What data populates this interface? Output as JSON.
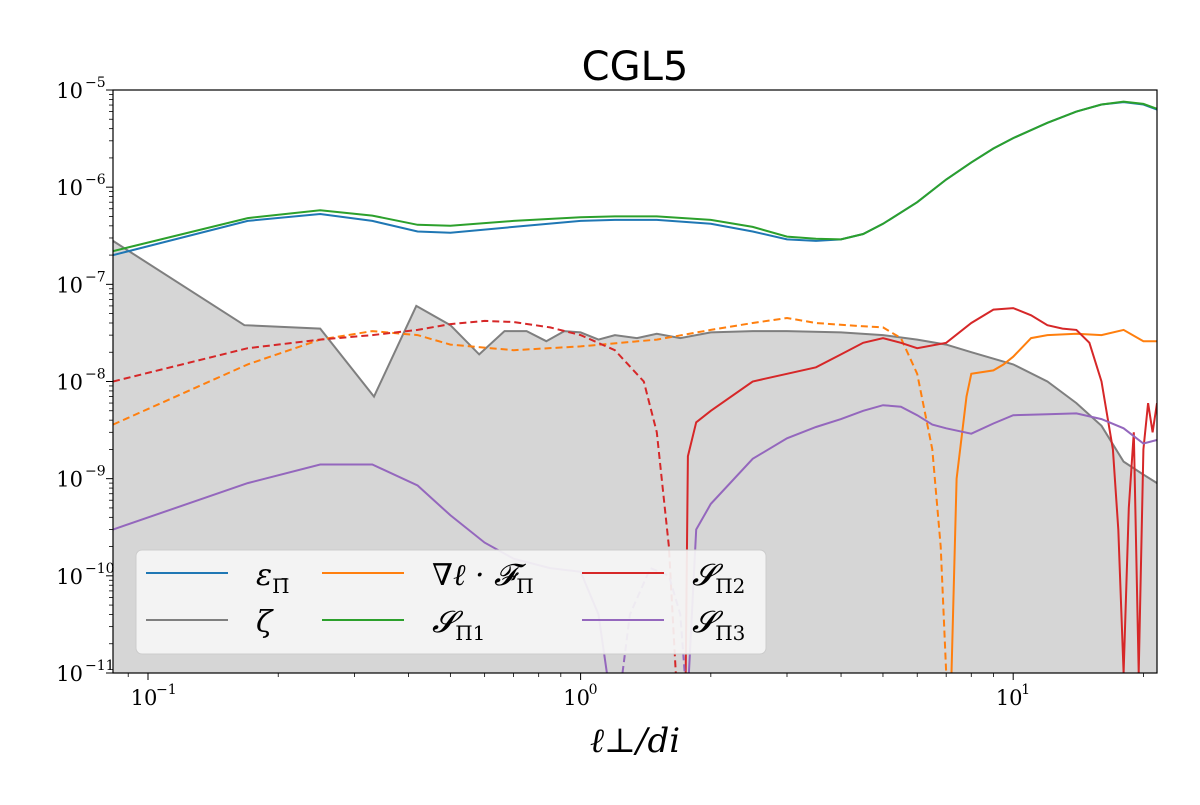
{
  "chart_data": {
    "type": "line",
    "title": "CGL5",
    "xlabel": "ℓ⊥/di",
    "ylabel": "",
    "xscale": "log",
    "yscale": "log",
    "xlim": [
      0.083,
      21.5
    ],
    "ylim": [
      1e-11,
      1e-05
    ],
    "x_ticks": [
      {
        "value": 0.1,
        "base": "10",
        "exp": "−1"
      },
      {
        "value": 1,
        "base": "10",
        "exp": "0"
      },
      {
        "value": 10,
        "base": "10",
        "exp": "1"
      }
    ],
    "y_ticks": [
      {
        "value": 1e-11,
        "base": "10",
        "exp": "−11"
      },
      {
        "value": 1e-10,
        "base": "10",
        "exp": "−10"
      },
      {
        "value": 1e-09,
        "base": "10",
        "exp": "−9"
      },
      {
        "value": 1e-08,
        "base": "10",
        "exp": "−8"
      },
      {
        "value": 1e-07,
        "base": "10",
        "exp": "−7"
      },
      {
        "value": 1e-06,
        "base": "10",
        "exp": "−6"
      },
      {
        "value": 1e-05,
        "base": "10",
        "exp": "−5"
      }
    ],
    "grid": false,
    "legend_position": "lower-left",
    "series": [
      {
        "name": "ε Π̄",
        "color": "#1f77b4",
        "style": "solid",
        "kind": "line",
        "points": [
          [
            0.083,
            2e-07
          ],
          [
            0.17,
            4.5e-07
          ],
          [
            0.25,
            5.3e-07
          ],
          [
            0.33,
            4.5e-07
          ],
          [
            0.42,
            3.5e-07
          ],
          [
            0.5,
            3.4e-07
          ],
          [
            0.7,
            3.9e-07
          ],
          [
            1.0,
            4.5e-07
          ],
          [
            1.2,
            4.6e-07
          ],
          [
            1.5,
            4.6e-07
          ],
          [
            2.0,
            4.2e-07
          ],
          [
            2.5,
            3.5e-07
          ],
          [
            3.0,
            2.9e-07
          ],
          [
            3.5,
            2.8e-07
          ],
          [
            4.0,
            2.9e-07
          ],
          [
            4.5,
            3.3e-07
          ],
          [
            5.0,
            4.2e-07
          ],
          [
            6.0,
            7e-07
          ],
          [
            7.0,
            1.2e-06
          ],
          [
            8.0,
            1.8e-06
          ],
          [
            9.0,
            2.5e-06
          ],
          [
            10.0,
            3.2e-06
          ],
          [
            12.0,
            4.6e-06
          ],
          [
            14.0,
            6e-06
          ],
          [
            16.0,
            7.1e-06
          ],
          [
            18.0,
            7.5e-06
          ],
          [
            20.0,
            7.1e-06
          ],
          [
            21.5,
            6.3e-06
          ]
        ]
      },
      {
        "name": "S Π1",
        "color": "#2ca02c",
        "style": "solid",
        "kind": "line",
        "points": [
          [
            0.083,
            2.2e-07
          ],
          [
            0.17,
            4.8e-07
          ],
          [
            0.25,
            5.8e-07
          ],
          [
            0.33,
            5.1e-07
          ],
          [
            0.42,
            4.1e-07
          ],
          [
            0.5,
            4e-07
          ],
          [
            0.7,
            4.5e-07
          ],
          [
            1.0,
            4.9e-07
          ],
          [
            1.2,
            5e-07
          ],
          [
            1.5,
            5e-07
          ],
          [
            2.0,
            4.6e-07
          ],
          [
            2.5,
            3.9e-07
          ],
          [
            3.0,
            3.1e-07
          ],
          [
            3.5,
            2.95e-07
          ],
          [
            4.0,
            2.9e-07
          ],
          [
            4.5,
            3.3e-07
          ],
          [
            5.0,
            4.2e-07
          ],
          [
            6.0,
            7e-07
          ],
          [
            7.0,
            1.2e-06
          ],
          [
            8.0,
            1.8e-06
          ],
          [
            9.0,
            2.5e-06
          ],
          [
            10.0,
            3.2e-06
          ],
          [
            12.0,
            4.6e-06
          ],
          [
            14.0,
            6e-06
          ],
          [
            16.0,
            7.1e-06
          ],
          [
            18.0,
            7.6e-06
          ],
          [
            20.0,
            7.2e-06
          ],
          [
            21.5,
            6.4e-06
          ]
        ]
      },
      {
        "name": "ζ",
        "color": "#7f7f7f",
        "style": "solid",
        "kind": "filled",
        "points": [
          [
            0.083,
            2.8e-07
          ],
          [
            0.167,
            3.8e-08
          ],
          [
            0.25,
            3.5e-08
          ],
          [
            0.333,
            7e-09
          ],
          [
            0.417,
            6e-08
          ],
          [
            0.5,
            3.8e-08
          ],
          [
            0.583,
            1.9e-08
          ],
          [
            0.667,
            3.3e-08
          ],
          [
            0.75,
            3.3e-08
          ],
          [
            0.833,
            2.6e-08
          ],
          [
            0.917,
            3.3e-08
          ],
          [
            1.0,
            3.2e-08
          ],
          [
            1.1,
            2.7e-08
          ],
          [
            1.2,
            3e-08
          ],
          [
            1.35,
            2.8e-08
          ],
          [
            1.5,
            3.1e-08
          ],
          [
            1.7,
            2.8e-08
          ],
          [
            2.0,
            3.2e-08
          ],
          [
            2.5,
            3.3e-08
          ],
          [
            3.0,
            3.3e-08
          ],
          [
            4.0,
            3.2e-08
          ],
          [
            5.0,
            3e-08
          ],
          [
            6.0,
            2.7e-08
          ],
          [
            7.0,
            2.4e-08
          ],
          [
            8.0,
            2e-08
          ],
          [
            10.0,
            1.5e-08
          ],
          [
            12.0,
            1e-08
          ],
          [
            14.0,
            6e-09
          ],
          [
            16.0,
            3.5e-09
          ],
          [
            18.0,
            1.5e-09
          ],
          [
            20.0,
            1.1e-09
          ],
          [
            21.5,
            9e-10
          ]
        ]
      },
      {
        "name": "∇ℓ · FΠ",
        "color": "#ff7f0e",
        "style": "mixed",
        "kind": "line",
        "dashed_points": [
          [
            0.083,
            3.6e-09
          ],
          [
            0.17,
            1.5e-08
          ],
          [
            0.25,
            2.7e-08
          ],
          [
            0.33,
            3.3e-08
          ],
          [
            0.42,
            3e-08
          ],
          [
            0.5,
            2.4e-08
          ],
          [
            0.7,
            2.1e-08
          ],
          [
            1.0,
            2.3e-08
          ],
          [
            1.5,
            2.7e-08
          ],
          [
            2.0,
            3.4e-08
          ],
          [
            2.5,
            4e-08
          ],
          [
            3.0,
            4.5e-08
          ],
          [
            3.5,
            4e-08
          ],
          [
            4.5,
            3.7e-08
          ],
          [
            5.0,
            3.6e-08
          ],
          [
            5.5,
            2.8e-08
          ],
          [
            6.0,
            1.2e-08
          ],
          [
            6.5,
            2e-09
          ],
          [
            6.8,
            2e-10
          ],
          [
            7.0,
            1e-11
          ]
        ],
        "solid_points": [
          [
            7.2,
            1e-11
          ],
          [
            7.4,
            1e-09
          ],
          [
            7.8,
            7e-09
          ],
          [
            8.0,
            1.2e-08
          ],
          [
            9.0,
            1.3e-08
          ],
          [
            9.5,
            1.5e-08
          ],
          [
            10.0,
            1.8e-08
          ],
          [
            11.0,
            2.8e-08
          ],
          [
            12.0,
            3e-08
          ],
          [
            14.0,
            3.1e-08
          ],
          [
            16.0,
            3e-08
          ],
          [
            18.0,
            3.4e-08
          ],
          [
            20.0,
            2.6e-08
          ],
          [
            21.5,
            2.6e-08
          ]
        ]
      },
      {
        "name": "S Π2",
        "color": "#d62728",
        "style": "mixed",
        "kind": "line",
        "dashed_points": [
          [
            0.083,
            1e-08
          ],
          [
            0.17,
            2.2e-08
          ],
          [
            0.25,
            2.7e-08
          ],
          [
            0.33,
            3e-08
          ],
          [
            0.42,
            3.4e-08
          ],
          [
            0.5,
            3.9e-08
          ],
          [
            0.6,
            4.2e-08
          ],
          [
            0.7,
            4.1e-08
          ],
          [
            0.85,
            3.6e-08
          ],
          [
            1.0,
            3e-08
          ],
          [
            1.2,
            2.1e-08
          ],
          [
            1.4,
            1e-08
          ],
          [
            1.5,
            3e-09
          ],
          [
            1.6,
            2e-10
          ],
          [
            1.66,
            1e-11
          ]
        ],
        "solid_points": [
          [
            1.75,
            1e-11
          ],
          [
            1.77,
            1.7e-09
          ],
          [
            1.85,
            3.8e-09
          ],
          [
            2.0,
            5e-09
          ],
          [
            2.5,
            1e-08
          ],
          [
            3.0,
            1.2e-08
          ],
          [
            3.5,
            1.4e-08
          ],
          [
            4.0,
            1.9e-08
          ],
          [
            4.5,
            2.5e-08
          ],
          [
            5.0,
            2.8e-08
          ],
          [
            5.5,
            2.5e-08
          ],
          [
            6.0,
            2.2e-08
          ],
          [
            7.0,
            2.5e-08
          ],
          [
            8.0,
            4e-08
          ],
          [
            9.0,
            5.5e-08
          ],
          [
            10.0,
            5.7e-08
          ],
          [
            11.0,
            4.8e-08
          ],
          [
            12.0,
            3.8e-08
          ],
          [
            13.0,
            3.5e-08
          ],
          [
            14.0,
            3.4e-08
          ],
          [
            15.0,
            2.5e-08
          ],
          [
            16.0,
            1e-08
          ],
          [
            17.0,
            2e-09
          ],
          [
            17.5,
            3e-10
          ],
          [
            18.0,
            1e-11
          ],
          [
            18.5,
            5e-10
          ],
          [
            19.0,
            3e-09
          ],
          [
            19.5,
            1e-11
          ],
          [
            20.0,
            2e-09
          ],
          [
            20.5,
            6e-09
          ],
          [
            21.0,
            3e-09
          ],
          [
            21.5,
            6e-09
          ]
        ]
      },
      {
        "name": "S Π3",
        "color": "#9467bd",
        "style": "mixed",
        "kind": "line",
        "solid_points": [
          [
            0.083,
            3e-10
          ],
          [
            0.17,
            9e-10
          ],
          [
            0.25,
            1.4e-09
          ],
          [
            0.33,
            1.4e-09
          ],
          [
            0.42,
            8.5e-10
          ],
          [
            0.5,
            4.2e-10
          ],
          [
            0.6,
            2.2e-10
          ],
          [
            0.7,
            1.5e-10
          ],
          [
            0.85,
            1.2e-10
          ],
          [
            1.0,
            1.1e-10
          ],
          [
            1.1,
            4e-11
          ],
          [
            1.15,
            1e-11
          ]
        ],
        "dashed_points": [
          [
            1.25,
            1e-11
          ],
          [
            1.3,
            4e-11
          ],
          [
            1.45,
            1.2e-10
          ],
          [
            1.6,
            1e-10
          ],
          [
            1.7,
            4e-11
          ],
          [
            1.74,
            1e-11
          ]
        ],
        "solid_points_2": [
          [
            1.78,
            1e-11
          ],
          [
            1.85,
            3e-10
          ],
          [
            2.0,
            5.5e-10
          ],
          [
            2.5,
            1.6e-09
          ],
          [
            3.0,
            2.6e-09
          ],
          [
            3.5,
            3.4e-09
          ],
          [
            4.0,
            4.1e-09
          ],
          [
            4.5,
            5e-09
          ],
          [
            5.0,
            5.7e-09
          ],
          [
            5.5,
            5.5e-09
          ],
          [
            6.0,
            4.5e-09
          ],
          [
            6.5,
            3.6e-09
          ],
          [
            7.0,
            3.3e-09
          ],
          [
            8.0,
            2.9e-09
          ],
          [
            9.0,
            3.7e-09
          ],
          [
            10.0,
            4.5e-09
          ],
          [
            12.0,
            4.6e-09
          ],
          [
            14.0,
            4.7e-09
          ],
          [
            16.0,
            4.1e-09
          ],
          [
            18.0,
            3.3e-09
          ],
          [
            20.0,
            2.3e-09
          ],
          [
            21.5,
            2.5e-09
          ]
        ]
      }
    ],
    "legend": [
      {
        "name": "εΠ̄",
        "color": "#1f77b4",
        "label_main": "ε",
        "label_sub": "Π̄"
      },
      {
        "name": "ζ",
        "color": "#7f7f7f",
        "label_main": "ζ",
        "label_sub": ""
      },
      {
        "name": "∇ℓ · FΠ",
        "color": "#ff7f0e",
        "label_main": "∇ℓ · 𝓕",
        "label_sub": "Π"
      },
      {
        "name": "SΠ1",
        "color": "#2ca02c",
        "label_main": "𝓢",
        "label_sub": "Π1"
      },
      {
        "name": "SΠ2",
        "color": "#d62728",
        "label_main": "𝓢",
        "label_sub": "Π2"
      },
      {
        "name": "SΠ3",
        "color": "#9467bd",
        "label_main": "𝓢",
        "label_sub": "Π3"
      }
    ]
  }
}
